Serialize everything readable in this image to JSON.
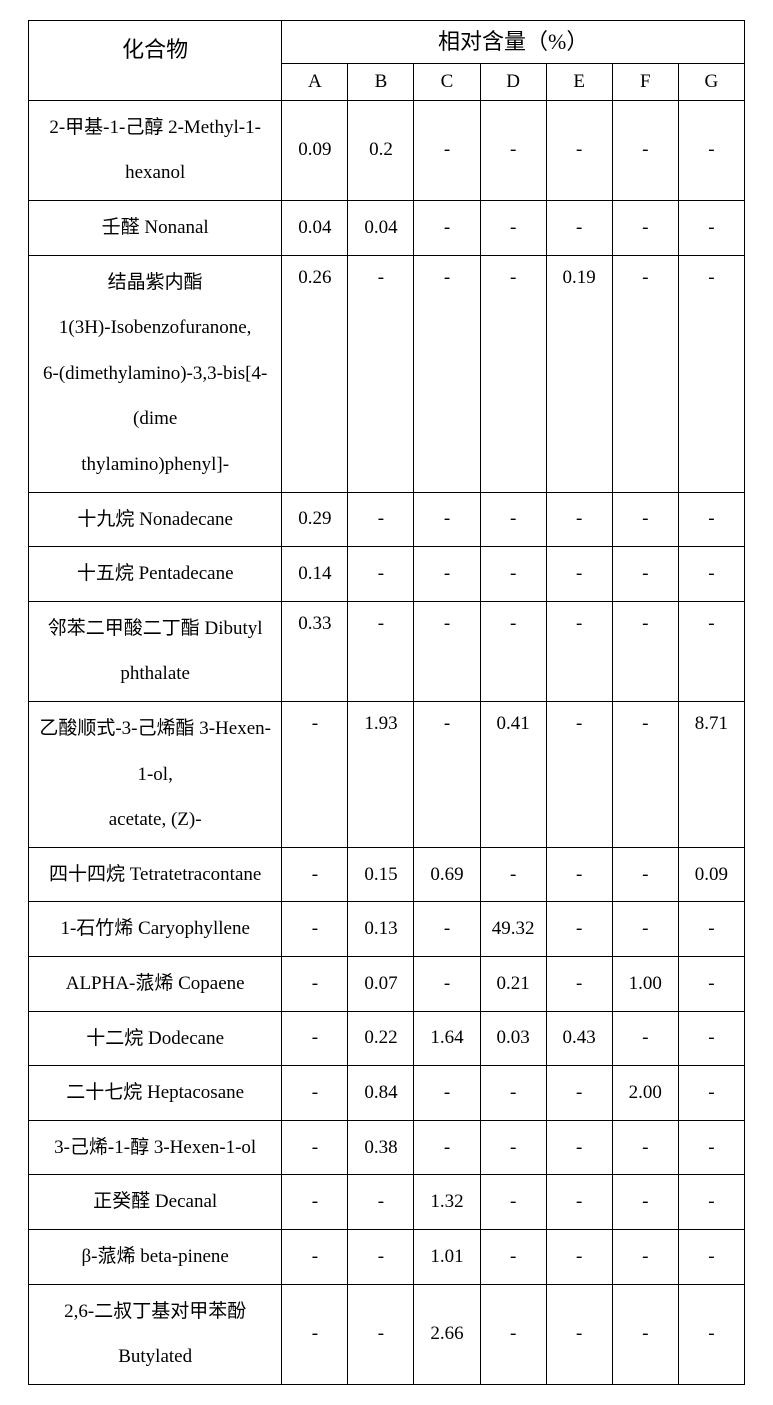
{
  "table": {
    "header": {
      "compound_label": "化合物",
      "group_label": "相对含量（%）",
      "columns": [
        "A",
        "B",
        "C",
        "D",
        "E",
        "F",
        "G"
      ]
    },
    "rows": [
      {
        "compound_lines": [
          "2-甲基-1-己醇 2-Methyl-1-hexanol"
        ],
        "values": [
          "0.09",
          "0.2",
          "-",
          "-",
          "-",
          "-",
          "-"
        ],
        "valign_top": false
      },
      {
        "compound_lines": [
          "壬醛 Nonanal"
        ],
        "values": [
          "0.04",
          "0.04",
          "-",
          "-",
          "-",
          "-",
          "-"
        ],
        "valign_top": false
      },
      {
        "compound_lines": [
          "结晶紫内酯",
          "1(3H)-Isobenzofuranone,",
          "6-(dimethylamino)-3,3-bis[4-(dime",
          "thylamino)phenyl]-"
        ],
        "values": [
          "0.26",
          "-",
          "-",
          "-",
          "0.19",
          "-",
          "-"
        ],
        "valign_top": true
      },
      {
        "compound_lines": [
          "十九烷 Nonadecane"
        ],
        "values": [
          "0.29",
          "-",
          "-",
          "-",
          "-",
          "-",
          "-"
        ],
        "valign_top": false
      },
      {
        "compound_lines": [
          "十五烷 Pentadecane"
        ],
        "values": [
          "0.14",
          "-",
          "-",
          "-",
          "-",
          "-",
          "-"
        ],
        "valign_top": false
      },
      {
        "compound_lines": [
          "邻苯二甲酸二丁酯 Dibutyl",
          "phthalate"
        ],
        "values": [
          "0.33",
          "-",
          "-",
          "-",
          "-",
          "-",
          "-"
        ],
        "valign_top": true
      },
      {
        "compound_lines": [
          "乙酸顺式-3-己烯酯 3-Hexen-1-ol,",
          "acetate, (Z)-"
        ],
        "values": [
          "-",
          "1.93",
          "-",
          "0.41",
          "-",
          "-",
          "8.71"
        ],
        "valign_top": true
      },
      {
        "compound_lines": [
          "四十四烷 Tetratetracontane"
        ],
        "values": [
          "-",
          "0.15",
          "0.69",
          "-",
          "-",
          "-",
          "0.09"
        ],
        "valign_top": false
      },
      {
        "compound_lines": [
          "1-石竹烯 Caryophyllene"
        ],
        "values": [
          "-",
          "0.13",
          "-",
          "49.32",
          "-",
          "-",
          "-"
        ],
        "valign_top": false
      },
      {
        "compound_lines": [
          "ALPHA-蒎烯 Copaene"
        ],
        "values": [
          "-",
          "0.07",
          "-",
          "0.21",
          "-",
          "1.00",
          "-"
        ],
        "valign_top": false
      },
      {
        "compound_lines": [
          "十二烷 Dodecane"
        ],
        "values": [
          "-",
          "0.22",
          "1.64",
          "0.03",
          "0.43",
          "-",
          "-"
        ],
        "valign_top": false
      },
      {
        "compound_lines": [
          "二十七烷 Heptacosane"
        ],
        "values": [
          "-",
          "0.84",
          "-",
          "-",
          "-",
          "2.00",
          "-"
        ],
        "valign_top": false
      },
      {
        "compound_lines": [
          "3-己烯-1-醇 3-Hexen-1-ol"
        ],
        "values": [
          "-",
          "0.38",
          "-",
          "-",
          "-",
          "-",
          "-"
        ],
        "valign_top": false
      },
      {
        "compound_lines": [
          "正癸醛 Decanal"
        ],
        "values": [
          "-",
          "-",
          "1.32",
          "-",
          "-",
          "-",
          "-"
        ],
        "valign_top": false
      },
      {
        "compound_lines": [
          "β-蒎烯 beta-pinene"
        ],
        "values": [
          "-",
          "-",
          "1.01",
          "-",
          "-",
          "-",
          "-"
        ],
        "valign_top": false
      },
      {
        "compound_lines": [
          "2,6-二叔丁基对甲苯酚 Butylated"
        ],
        "values": [
          "-",
          "-",
          "2.66",
          "-",
          "-",
          "-",
          "-"
        ],
        "valign_top": false
      }
    ]
  }
}
